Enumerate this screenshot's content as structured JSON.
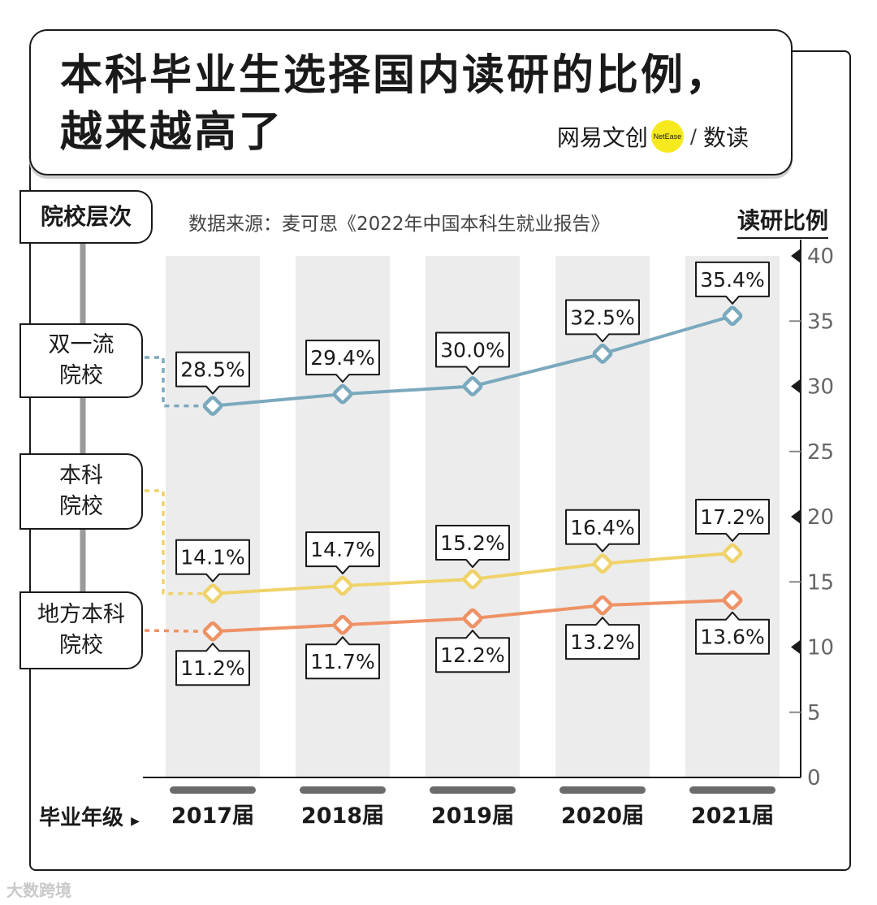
{
  "title": {
    "line1": "本科毕业生选择国内读研的比例，",
    "line2": "越来越高了"
  },
  "brand": {
    "name": "网易文创",
    "badge": "NetEase",
    "slash": "/",
    "product": "数读"
  },
  "source": "数据来源：麦可思《2022年中国本科生就业报告》",
  "axis_title": "读研比例",
  "legend_header": "院校层次",
  "xaxis_title": "毕业年级",
  "watermark": "大数跨境",
  "series_labels": [
    {
      "line1": "双一流",
      "line2": "院校"
    },
    {
      "line1": "本科",
      "line2": "院校"
    },
    {
      "line1": "地方本科",
      "line2": "院校"
    }
  ],
  "colors": {
    "series1": "#7aa9bd",
    "series2": "#efd36a",
    "series3": "#ee9266",
    "band": "#ececec",
    "ink": "#1a1a1a"
  },
  "chart_data": {
    "type": "line",
    "title": "本科毕业生选择国内读研的比例，越来越高了",
    "xlabel": "毕业年级",
    "ylabel": "读研比例",
    "categories": [
      "2017届",
      "2018届",
      "2019届",
      "2020届",
      "2021届"
    ],
    "ylim": [
      0,
      40
    ],
    "yticks": [
      0,
      5,
      10,
      15,
      20,
      25,
      30,
      35,
      40
    ],
    "series": [
      {
        "name": "双一流院校",
        "values": [
          28.5,
          29.4,
          30.0,
          32.5,
          35.4
        ],
        "labels": [
          "28.5%",
          "29.4%",
          "30.0%",
          "32.5%",
          "35.4%"
        ],
        "label_position": "above"
      },
      {
        "name": "本科院校",
        "values": [
          14.1,
          14.7,
          15.2,
          16.4,
          17.2
        ],
        "labels": [
          "14.1%",
          "14.7%",
          "15.2%",
          "16.4%",
          "17.2%"
        ],
        "label_position": "above"
      },
      {
        "name": "地方本科院校",
        "values": [
          11.2,
          11.7,
          12.2,
          13.2,
          13.6
        ],
        "labels": [
          "11.2%",
          "11.7%",
          "12.2%",
          "13.2%",
          "13.6%"
        ],
        "label_position": "below"
      }
    ]
  }
}
